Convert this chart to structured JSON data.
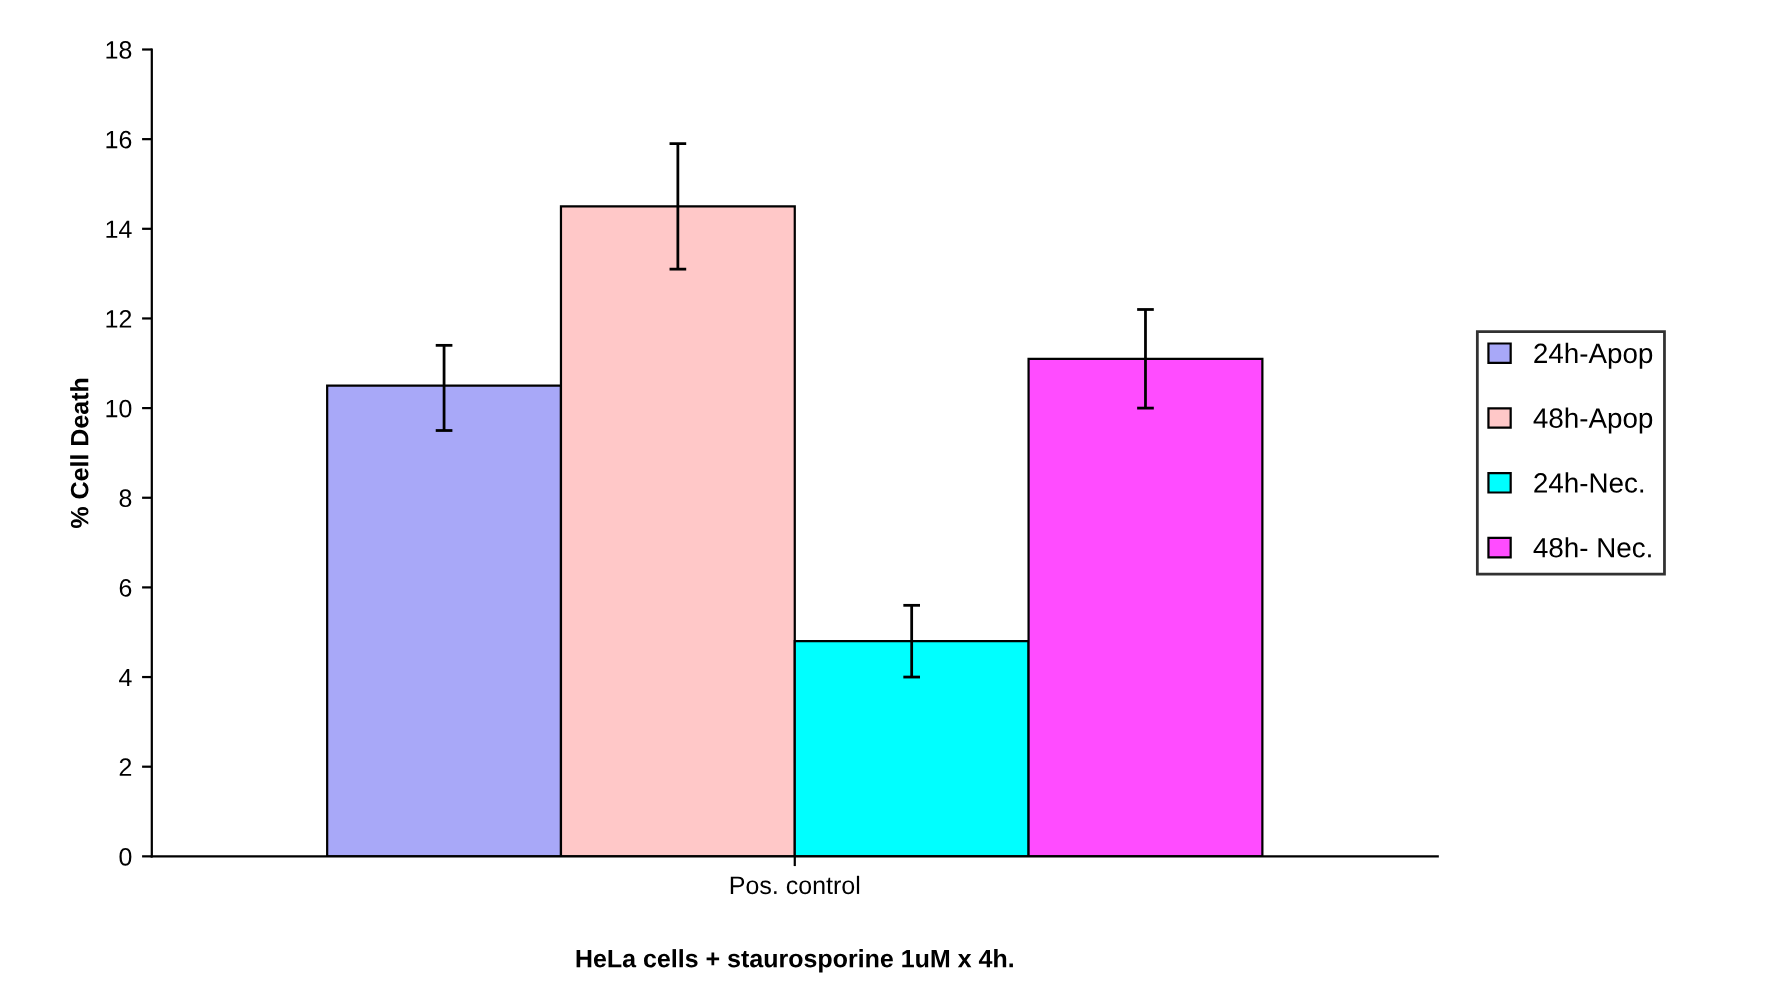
{
  "chart_data": {
    "type": "bar",
    "xlabel": "HeLa cells + staurosporine 1uM x 4h.",
    "ylabel": "% Cell Death",
    "categories": [
      "Pos. control"
    ],
    "series": [
      {
        "name": "24h-Apop",
        "color": "#a8a8f8",
        "values": [
          10.5
        ],
        "errors": [
          [
            9.5,
            11.4
          ]
        ]
      },
      {
        "name": "48h-Apop",
        "color": "#ffc8c8",
        "values": [
          14.5
        ],
        "errors": [
          [
            13.1,
            15.9
          ]
        ]
      },
      {
        "name": "24h-Nec.",
        "color": "#00ffff",
        "values": [
          4.8
        ],
        "errors": [
          [
            4.0,
            5.6
          ]
        ]
      },
      {
        "name": "48h- Nec.",
        "color": "#ff4cff",
        "values": [
          11.1
        ],
        "errors": [
          [
            10.0,
            12.2
          ]
        ]
      }
    ],
    "ylim": [
      0,
      18
    ],
    "yticks": [
      0,
      2,
      4,
      6,
      8,
      10,
      12,
      14,
      16,
      18
    ],
    "grid": false,
    "legend": "right"
  }
}
